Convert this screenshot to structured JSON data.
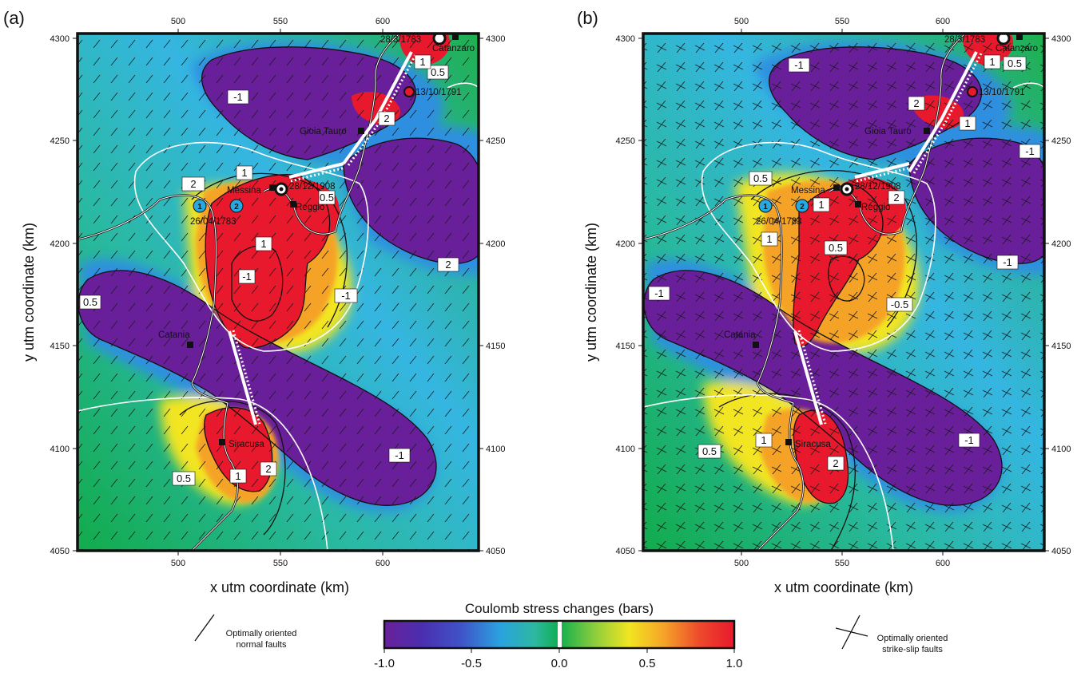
{
  "panels": [
    {
      "letter": "(a)",
      "xlabel": "x utm coordinate (km)",
      "ylabel": "y utm coordinate (km)",
      "x_ticks": [
        "500",
        "550",
        "600"
      ],
      "y_ticks": [
        "4050",
        "4100",
        "4150",
        "4200",
        "4250",
        "4300"
      ],
      "places": {
        "catanzaro": "Catanzaro",
        "gioia": "Gioia Tauro",
        "messina": "Messina",
        "reggio": "Reggio",
        "catania": "Catania",
        "siracusa": "Siracusa"
      },
      "dates": {
        "d1783a": "28/3/1783",
        "d1791": "13/10/1791",
        "d1908": "28/12/1908",
        "d1783b": "26/04/1783"
      },
      "markers": [
        "1",
        "2"
      ],
      "contour_labels": [
        "-1",
        "0.5",
        "1",
        "2",
        "2",
        "1",
        "0.5",
        "2",
        "1",
        "-1",
        "-1",
        "0.5",
        "-1",
        "0.5",
        "1",
        "2"
      ]
    },
    {
      "letter": "(b)",
      "xlabel": "x utm coordinate (km)",
      "ylabel": "y utm coordinate (km)",
      "x_ticks": [
        "500",
        "550",
        "600"
      ],
      "y_ticks": [
        "4050",
        "4100",
        "4150",
        "4200",
        "4250",
        "4300"
      ],
      "places": {
        "catanzaro": "Catanzaro",
        "gioia": "Gioia Tauro",
        "messina": "Messina",
        "reggio": "Reggio",
        "catania": "Catania",
        "siracusa": "Siracusa"
      },
      "dates": {
        "d1783a": "28/3/1783",
        "d1791": "13/10/1791",
        "d1908": "28/12/1908",
        "d1783b": "26/04/1783"
      },
      "markers": [
        "1",
        "2"
      ],
      "contour_labels": [
        "-1",
        "1",
        "0.5",
        "2",
        "1",
        "-1",
        "0.5",
        "1",
        "1",
        "2",
        "0.5",
        "-0.5",
        "-1",
        "-1",
        "1",
        "0.5",
        "2",
        "-1"
      ]
    }
  ],
  "colorbar": {
    "title": "Coulomb stress changes (bars)",
    "ticks": [
      "-1.0",
      "-0.5",
      "0.0",
      "0.5",
      "1.0"
    ],
    "colors": [
      "#6a1f9a",
      "#3f53c8",
      "#2aa2e0",
      "#2cb8a0",
      "#0fae4f",
      "#8bcd3d",
      "#f2e521",
      "#f5a327",
      "#ee4a2c",
      "#e8192c"
    ]
  },
  "legend": {
    "normal": [
      "Optimally oriented",
      "normal faults"
    ],
    "strike_slip": [
      "Optimally oriented",
      "strike-slip faults"
    ]
  }
}
